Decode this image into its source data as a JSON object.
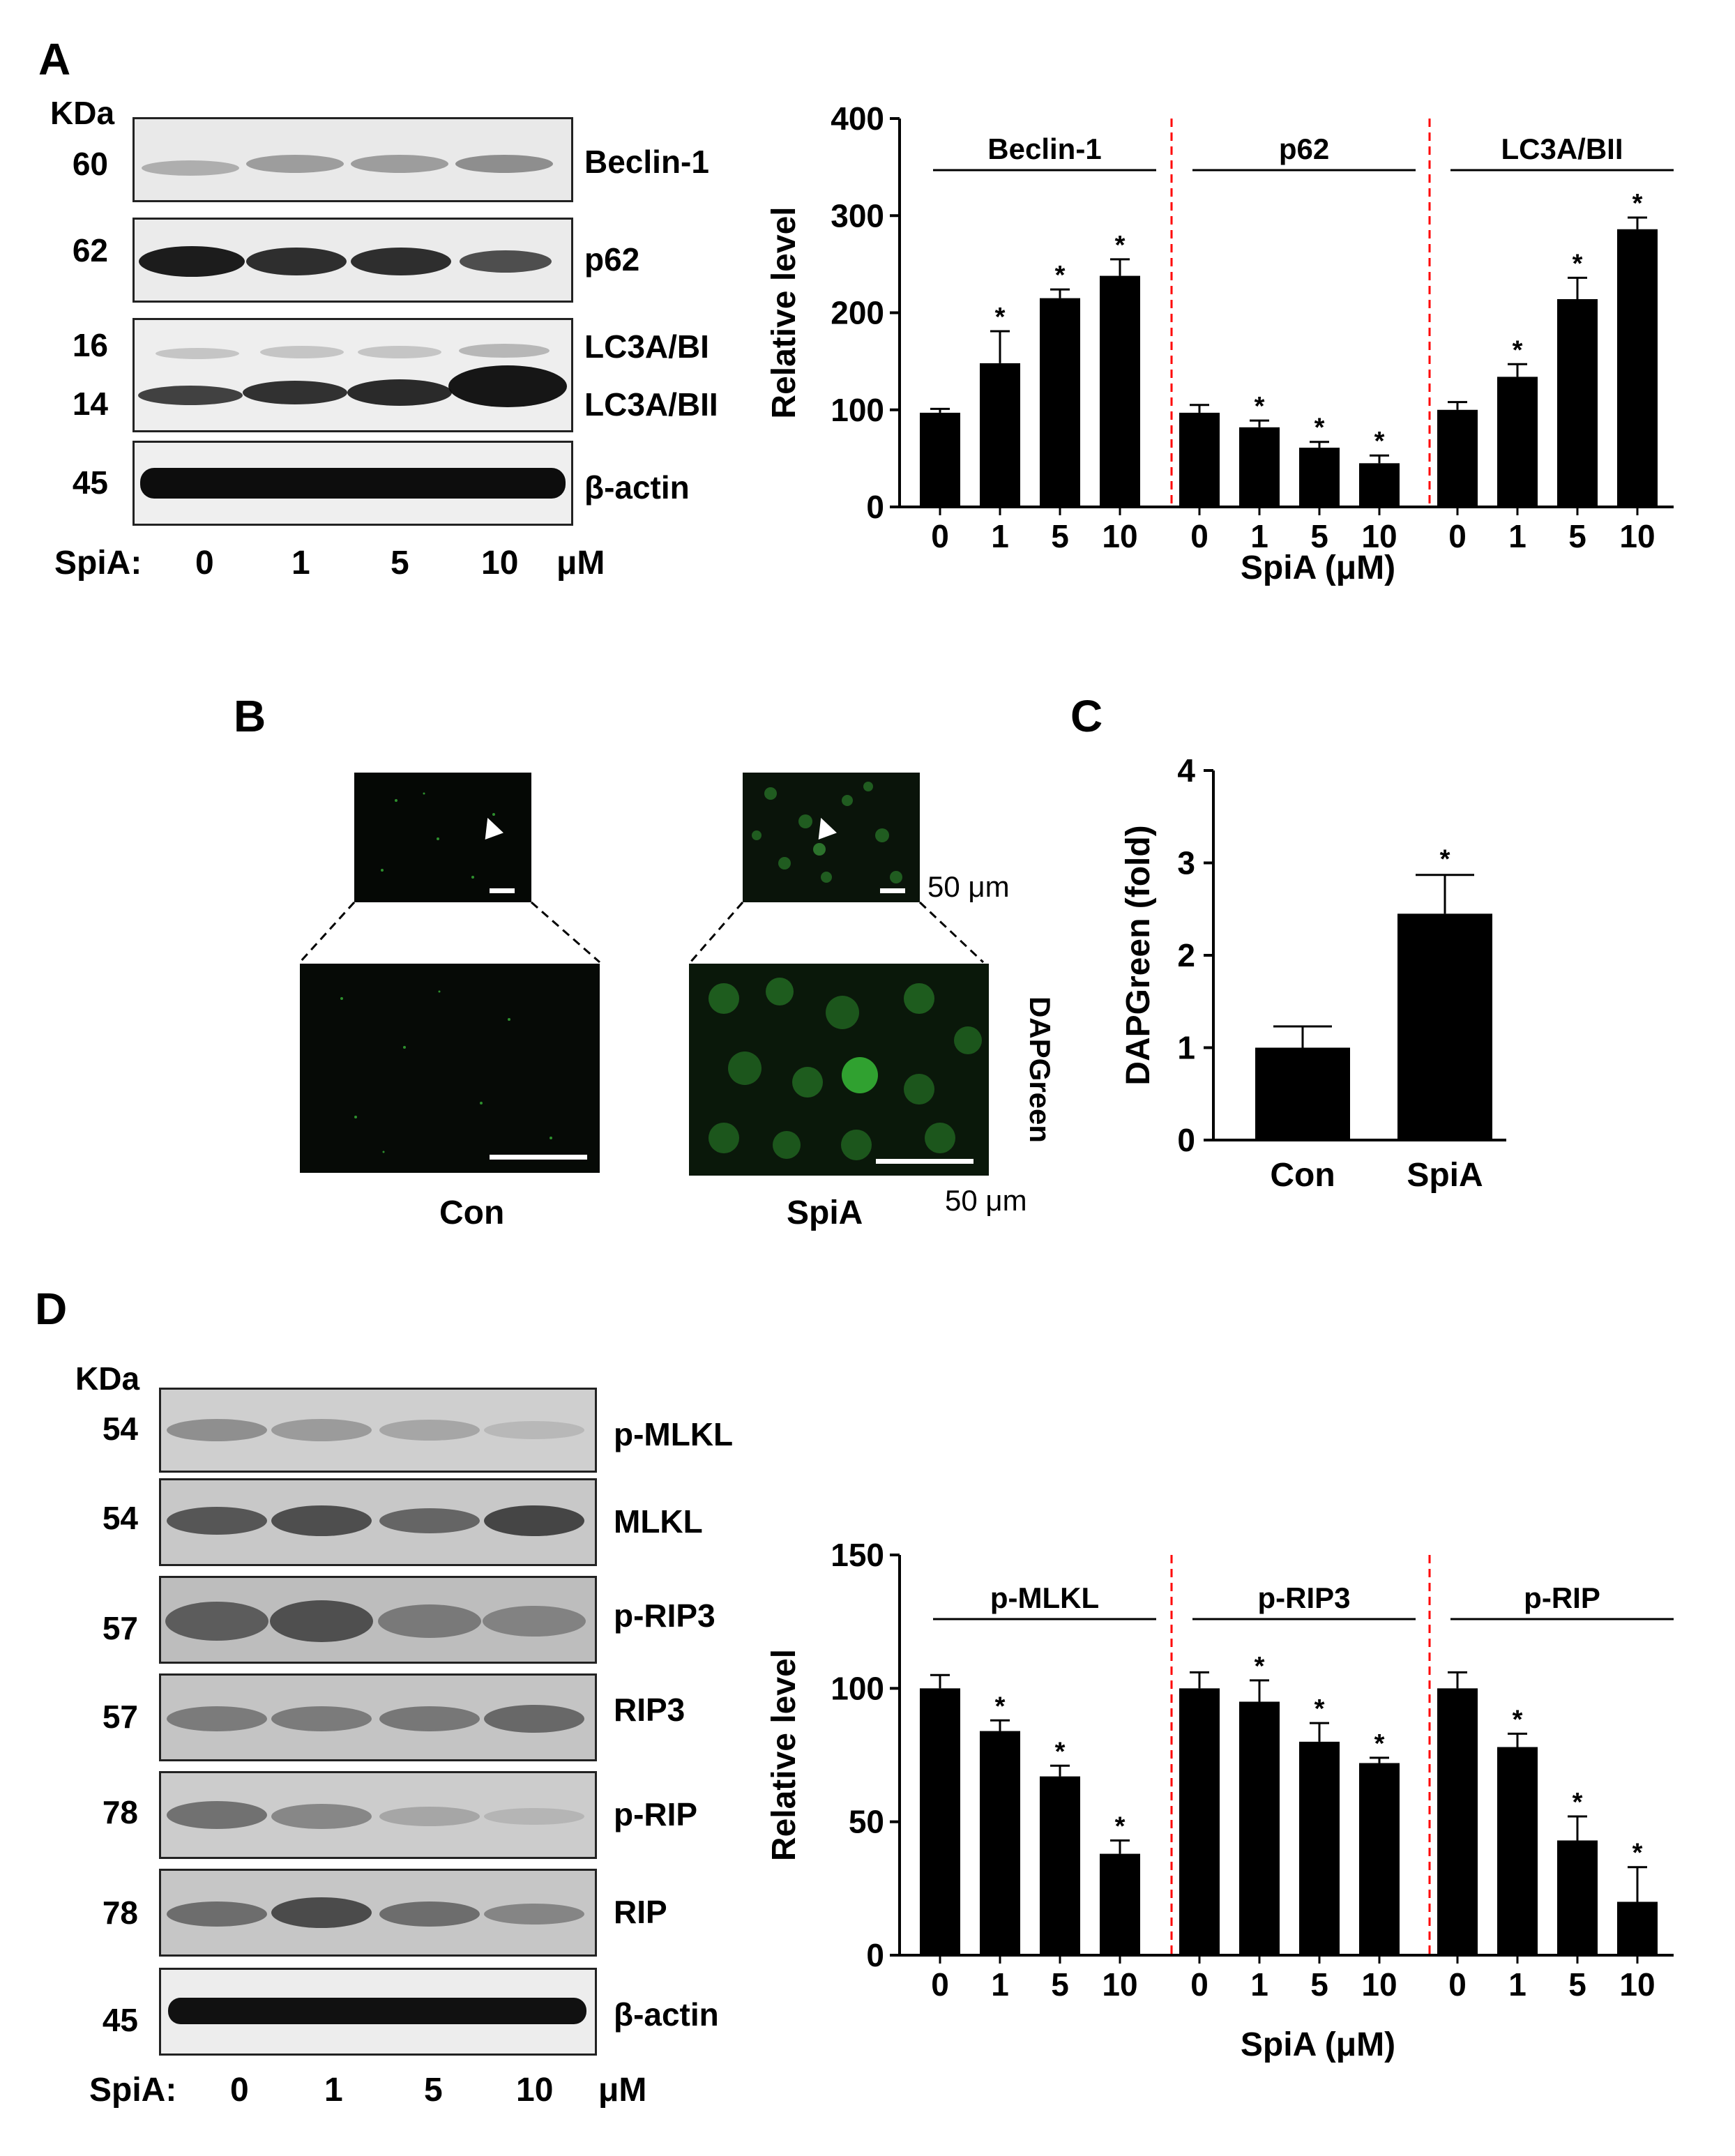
{
  "panels": {
    "a": "A",
    "b": "B",
    "c": "C",
    "d": "D"
  },
  "blots_a": {
    "kda": "KDa",
    "rows": [
      {
        "mw": "60",
        "labels": [
          "Beclin-1"
        ]
      },
      {
        "mw": "62",
        "labels": [
          "p62"
        ]
      },
      {
        "mw": "16",
        "mw2": "14",
        "labels": [
          "LC3A/BI",
          "LC3A/BII"
        ]
      },
      {
        "mw": "45",
        "labels": [
          "β-actin"
        ]
      }
    ],
    "treatment_label": "SpiA:",
    "lanes": [
      "0",
      "1",
      "5",
      "10"
    ],
    "unit": "μM"
  },
  "blots_d": {
    "kda": "KDa",
    "rows": [
      {
        "mw": "54",
        "label": "p-MLKL"
      },
      {
        "mw": "54",
        "label": "MLKL"
      },
      {
        "mw": "57",
        "label": "p-RIP3"
      },
      {
        "mw": "57",
        "label": "RIP3"
      },
      {
        "mw": "78",
        "label": "p-RIP"
      },
      {
        "mw": "78",
        "label": "RIP"
      },
      {
        "mw": "45",
        "label": "β-actin"
      }
    ],
    "treatment_label": "SpiA:",
    "lanes": [
      "0",
      "1",
      "5",
      "10"
    ],
    "unit": "μM"
  },
  "micro_b": {
    "scale_top": "50 μm",
    "scale_bottom": "50 μm",
    "stain_label": "DAPGreen",
    "conditions": [
      "Con",
      "SpiA"
    ]
  },
  "colors": {
    "bar": "#000000",
    "divider": "#ff0000",
    "fluorescence": "#3ecf3e"
  },
  "chart_data": [
    {
      "id": "A",
      "type": "bar",
      "ylabel": "Relative level",
      "xlabel": "SpiA (μM)",
      "ylim": [
        0,
        400
      ],
      "yticks": [
        0,
        100,
        200,
        300,
        400
      ],
      "groups": [
        {
          "name": "Beclin-1",
          "categories": [
            "0",
            "1",
            "5",
            "10"
          ],
          "values": [
            97,
            148,
            215,
            238
          ],
          "errors": [
            4,
            33,
            9,
            17
          ],
          "significant": [
            false,
            true,
            true,
            true
          ]
        },
        {
          "name": "p62",
          "categories": [
            "0",
            "1",
            "5",
            "10"
          ],
          "values": [
            97,
            82,
            61,
            45
          ],
          "errors": [
            8,
            7,
            6,
            8
          ],
          "significant": [
            false,
            true,
            true,
            true
          ]
        },
        {
          "name": "LC3A/BII",
          "categories": [
            "0",
            "1",
            "5",
            "10"
          ],
          "values": [
            100,
            134,
            214,
            286
          ],
          "errors": [
            8,
            13,
            22,
            12
          ],
          "significant": [
            false,
            true,
            true,
            true
          ]
        }
      ],
      "significance_mark": "*"
    },
    {
      "id": "C",
      "type": "bar",
      "ylabel": "DAPGreen (fold)",
      "xlabel": "",
      "ylim": [
        0,
        4
      ],
      "yticks": [
        0,
        1,
        2,
        3,
        4
      ],
      "categories": [
        "Con",
        "SpiA"
      ],
      "values": [
        1.0,
        2.45
      ],
      "errors": [
        0.23,
        0.42
      ],
      "significant": [
        false,
        true
      ],
      "significance_mark": "*"
    },
    {
      "id": "D",
      "type": "bar",
      "ylabel": "Relative level",
      "xlabel": "SpiA (μM)",
      "ylim": [
        0,
        150
      ],
      "yticks": [
        0,
        50,
        100,
        150
      ],
      "groups": [
        {
          "name": "p-MLKL",
          "categories": [
            "0",
            "1",
            "5",
            "10"
          ],
          "values": [
            100,
            84,
            67,
            38
          ],
          "errors": [
            5,
            4,
            4,
            5
          ],
          "significant": [
            false,
            true,
            true,
            true
          ]
        },
        {
          "name": "p-RIP3",
          "categories": [
            "0",
            "1",
            "5",
            "10"
          ],
          "values": [
            100,
            95,
            80,
            72
          ],
          "errors": [
            6,
            8,
            7,
            2
          ],
          "significant": [
            false,
            true,
            true,
            true
          ]
        },
        {
          "name": "p-RIP",
          "categories": [
            "0",
            "1",
            "5",
            "10"
          ],
          "values": [
            100,
            78,
            43,
            20
          ],
          "errors": [
            6,
            5,
            9,
            13
          ],
          "significant": [
            false,
            true,
            true,
            true
          ]
        }
      ],
      "significance_mark": "*"
    }
  ]
}
